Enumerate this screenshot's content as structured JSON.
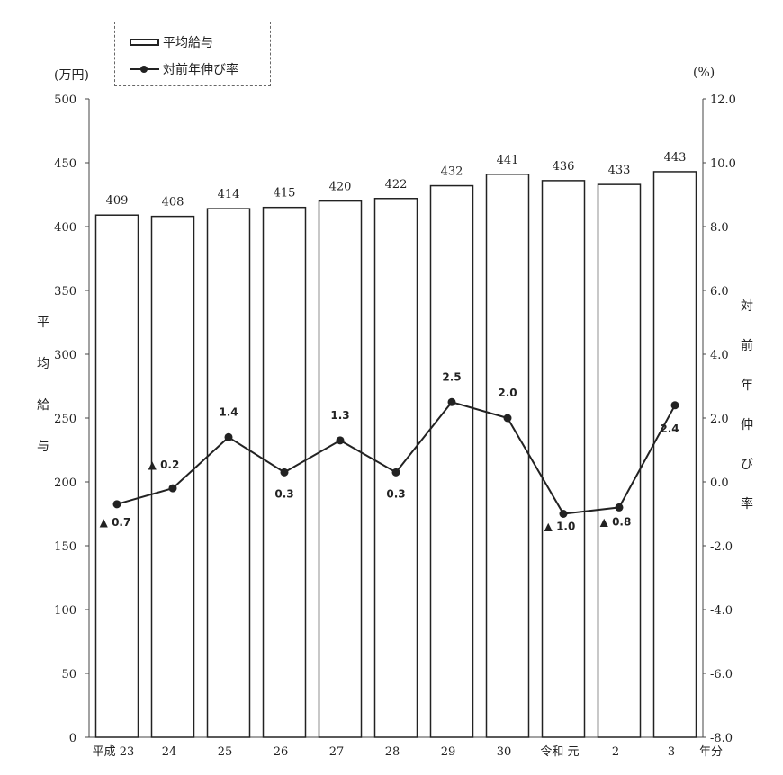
{
  "chart_data": {
    "type": "bar+line",
    "categories": [
      "平成 23",
      "24",
      "25",
      "26",
      "27",
      "28",
      "29",
      "30",
      "令和 元",
      "2",
      "3"
    ],
    "x_suffix": "年分",
    "series": [
      {
        "name": "平均給与",
        "type": "bar",
        "axis": "left",
        "values": [
          409,
          408,
          414,
          415,
          420,
          422,
          432,
          441,
          436,
          433,
          443
        ],
        "labels": [
          "409",
          "408",
          "414",
          "415",
          "420",
          "422",
          "432",
          "441",
          "436",
          "433",
          "443"
        ]
      },
      {
        "name": "対前年伸び率",
        "type": "line",
        "axis": "right",
        "values": [
          -0.7,
          -0.2,
          1.4,
          0.3,
          1.3,
          0.3,
          2.5,
          2.0,
          -1.0,
          -0.8,
          2.4
        ],
        "labels": [
          "▲ 0.7",
          "▲ 0.2",
          "1.4",
          "0.3",
          "1.3",
          "0.3",
          "2.5",
          "2.0",
          "▲ 1.0",
          "▲ 0.8",
          "2.4"
        ]
      }
    ],
    "left_axis": {
      "unit": "(万円)",
      "title": "平均給与",
      "ylim": [
        0,
        500
      ],
      "ticks": [
        "0",
        "50",
        "100",
        "150",
        "200",
        "250",
        "300",
        "350",
        "400",
        "450",
        "500"
      ]
    },
    "right_axis": {
      "unit": "(%)",
      "title": "対前年伸び率",
      "ylim": [
        -8,
        12
      ],
      "ticks": [
        "-8.0",
        "-6.0",
        "-4.0",
        "-2.0",
        "0.0",
        "2.0",
        "4.0",
        "6.0",
        "8.0",
        "10.0",
        "12.0"
      ]
    },
    "grid": false,
    "legend_position": "top-left",
    "colors": {
      "bar_fill": "#ffffff",
      "bar_stroke": "#222222",
      "line": "#222222"
    }
  }
}
